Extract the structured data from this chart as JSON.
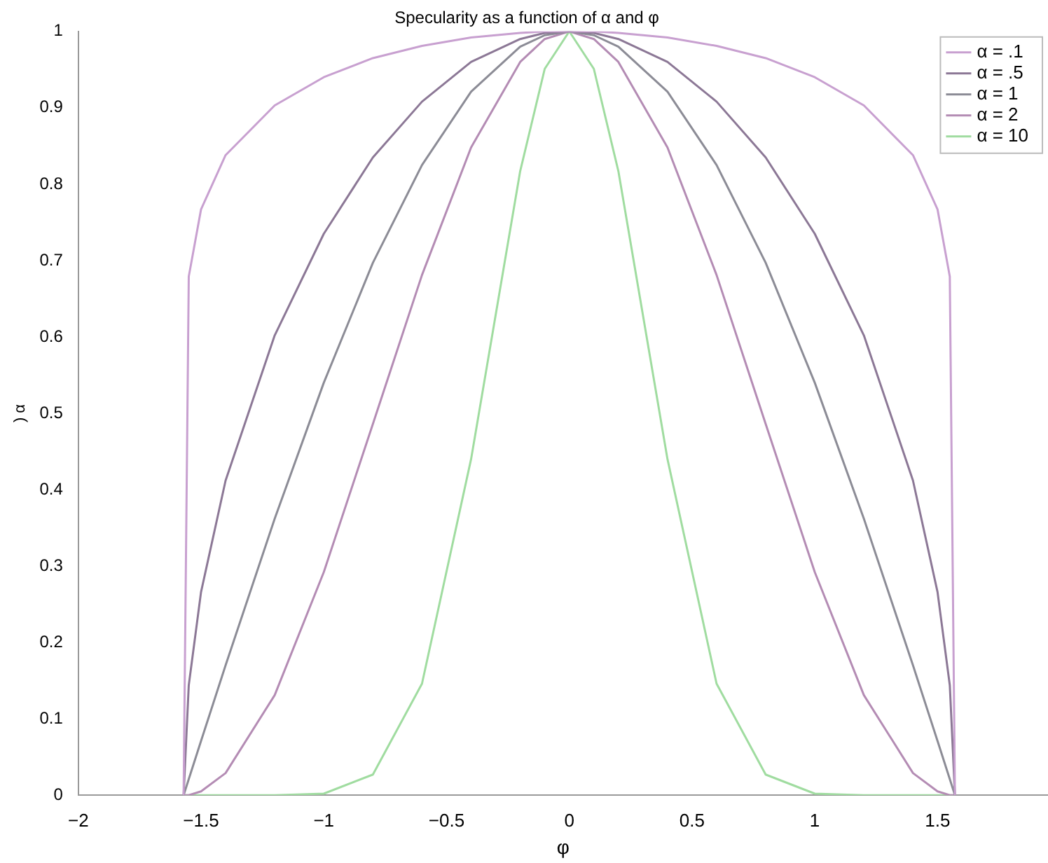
{
  "chart_data": {
    "type": "line",
    "title": "Specularity as a function of α and φ",
    "xlabel": "φ",
    "ylabel": ") α",
    "x": [
      -1.571,
      -1.55,
      -1.5,
      -1.4,
      -1.2,
      -1,
      -0.8,
      -0.6,
      -0.4,
      -0.2,
      -0.1,
      0,
      0.1,
      0.2,
      0.4,
      0.6,
      0.8,
      1,
      1.2,
      1.4,
      1.5,
      1.55,
      1.571
    ],
    "series": [
      {
        "name": "α = .1",
        "color": "#c8a0d0",
        "values": [
          0,
          0.679,
          0.767,
          0.838,
          0.903,
          0.94,
          0.965,
          0.981,
          0.992,
          0.998,
          1,
          1,
          1,
          0.998,
          0.992,
          0.981,
          0.965,
          0.94,
          0.903,
          0.838,
          0.767,
          0.679,
          0
        ]
      },
      {
        "name": "α = .5",
        "color": "#8c7896",
        "values": [
          0,
          0.144,
          0.266,
          0.412,
          0.602,
          0.735,
          0.835,
          0.908,
          0.96,
          0.99,
          0.998,
          1,
          0.998,
          0.99,
          0.96,
          0.908,
          0.835,
          0.735,
          0.602,
          0.412,
          0.266,
          0.144,
          0
        ]
      },
      {
        "name": "α = 1",
        "color": "#8c8c96",
        "values": [
          0,
          0.021,
          0.071,
          0.17,
          0.362,
          0.54,
          0.697,
          0.825,
          0.921,
          0.98,
          0.995,
          1,
          0.995,
          0.98,
          0.921,
          0.825,
          0.697,
          0.54,
          0.362,
          0.17,
          0.071,
          0.021,
          0
        ]
      },
      {
        "name": "α = 2",
        "color": "#b48cb4",
        "values": [
          0,
          0,
          0.005,
          0.029,
          0.131,
          0.292,
          0.486,
          0.681,
          0.848,
          0.96,
          0.99,
          1,
          0.99,
          0.96,
          0.848,
          0.681,
          0.486,
          0.292,
          0.131,
          0.029,
          0.005,
          0,
          0
        ]
      },
      {
        "name": "α = 10",
        "color": "#a0dca0",
        "values": [
          0,
          0,
          0,
          0,
          0,
          0.002,
          0.027,
          0.146,
          0.44,
          0.817,
          0.951,
          1,
          0.951,
          0.817,
          0.44,
          0.146,
          0.027,
          0.002,
          0,
          0,
          0,
          0,
          0
        ]
      }
    ],
    "xlim": [
      -2,
      1.95
    ],
    "xticks": [
      -2,
      -1.5,
      -1,
      -0.5,
      0,
      0.5,
      1,
      1.5
    ],
    "ylim": [
      0,
      1
    ],
    "yticks": [
      0,
      0.1,
      0.2,
      0.3,
      0.4,
      0.5,
      0.6,
      0.7,
      0.8,
      0.9,
      1
    ],
    "grid": false,
    "legend": "top right",
    "marker": "none",
    "line_style": "solid"
  }
}
